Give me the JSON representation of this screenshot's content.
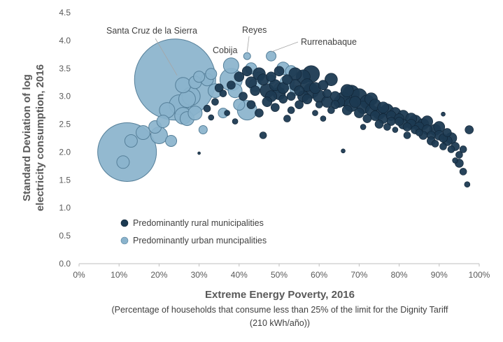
{
  "chart_data": {
    "type": "scatter",
    "xlabel": "Extreme Energy Poverty, 2016",
    "xlabel_sub_line1": "(Percentage of households that consume less than 25% of the limit for the Dignity Tariff",
    "xlabel_sub_line2": "(210 kWh/año))",
    "ylabel_line1": "Standard Deviation of log",
    "ylabel_line2": "electricity consumption, 2016",
    "xlim": [
      0,
      100
    ],
    "ylim": [
      0,
      4.5
    ],
    "x_ticks": [
      "0%",
      "10%",
      "20%",
      "30%",
      "40%",
      "50%",
      "60%",
      "70%",
      "80%",
      "90%",
      "100%"
    ],
    "y_ticks": [
      "0.0",
      "0.5",
      "1.0",
      "1.5",
      "2.0",
      "2.5",
      "3.0",
      "3.5",
      "4.0",
      "4.5"
    ],
    "grid": false,
    "legend_position": "bottom-left",
    "series": [
      {
        "name": "Predominantly rural municipalities",
        "color": "#1c3a52",
        "points": [
          [
            30,
            1.98
          ],
          [
            32,
            2.78
          ],
          [
            33,
            2.62
          ],
          [
            34,
            2.9
          ],
          [
            35,
            3.15
          ],
          [
            36,
            3.05
          ],
          [
            37,
            2.7
          ],
          [
            38,
            3.2
          ],
          [
            39,
            2.55
          ],
          [
            40,
            3.35
          ],
          [
            41,
            3.0
          ],
          [
            42,
            3.45
          ],
          [
            43,
            3.25
          ],
          [
            43,
            2.85
          ],
          [
            44,
            3.1
          ],
          [
            45,
            3.4
          ],
          [
            45,
            2.7
          ],
          [
            46,
            2.3
          ],
          [
            46,
            3.3
          ],
          [
            47,
            2.9
          ],
          [
            47,
            3.1
          ],
          [
            48,
            3.0
          ],
          [
            48,
            3.35
          ],
          [
            49,
            2.8
          ],
          [
            49,
            3.2
          ],
          [
            50,
            3.05
          ],
          [
            50,
            3.45
          ],
          [
            51,
            2.95
          ],
          [
            51,
            3.15
          ],
          [
            52,
            2.6
          ],
          [
            52,
            3.3
          ],
          [
            53,
            3.0
          ],
          [
            53,
            2.75
          ],
          [
            54,
            3.2
          ],
          [
            54,
            3.4
          ],
          [
            55,
            3.1
          ],
          [
            55,
            2.85
          ],
          [
            56,
            3.0
          ],
          [
            56,
            3.35
          ],
          [
            57,
            2.95
          ],
          [
            57,
            3.2
          ],
          [
            58,
            3.1
          ],
          [
            58,
            3.4
          ],
          [
            59,
            2.7
          ],
          [
            59,
            3.15
          ],
          [
            60,
            3.0
          ],
          [
            60,
            2.85
          ],
          [
            61,
            3.2
          ],
          [
            61,
            2.6
          ],
          [
            62,
            3.05
          ],
          [
            62,
            2.9
          ],
          [
            63,
            3.3
          ],
          [
            63,
            2.75
          ],
          [
            64,
            3.0
          ],
          [
            64,
            2.85
          ],
          [
            65,
            2.9
          ],
          [
            66,
            2.95
          ],
          [
            66,
            2.02
          ],
          [
            67,
            3.1
          ],
          [
            67,
            2.75
          ],
          [
            68,
            2.85
          ],
          [
            68,
            3.05
          ],
          [
            69,
            2.9
          ],
          [
            70,
            2.7
          ],
          [
            70,
            3.0
          ],
          [
            71,
            2.8
          ],
          [
            71,
            2.45
          ],
          [
            72,
            2.9
          ],
          [
            72,
            2.6
          ],
          [
            73,
            2.75
          ],
          [
            73,
            2.95
          ],
          [
            74,
            2.65
          ],
          [
            74,
            2.85
          ],
          [
            75,
            2.7
          ],
          [
            75,
            2.5
          ],
          [
            76,
            2.8
          ],
          [
            76,
            2.6
          ],
          [
            77,
            2.75
          ],
          [
            77,
            2.45
          ],
          [
            78,
            2.65
          ],
          [
            78,
            2.55
          ],
          [
            79,
            2.7
          ],
          [
            79,
            2.4
          ],
          [
            80,
            2.6
          ],
          [
            80,
            2.55
          ],
          [
            81,
            2.5
          ],
          [
            81,
            2.65
          ],
          [
            82,
            2.45
          ],
          [
            82,
            2.3
          ],
          [
            83,
            2.6
          ],
          [
            83,
            2.5
          ],
          [
            84,
            2.4
          ],
          [
            84,
            2.55
          ],
          [
            85,
            2.45
          ],
          [
            85,
            2.35
          ],
          [
            86,
            2.5
          ],
          [
            86,
            2.3
          ],
          [
            87,
            2.4
          ],
          [
            87,
            2.55
          ],
          [
            88,
            2.3
          ],
          [
            88,
            2.2
          ],
          [
            89,
            2.4
          ],
          [
            89,
            2.15
          ],
          [
            90,
            2.3
          ],
          [
            90,
            2.45
          ],
          [
            91,
            2.25
          ],
          [
            91,
            2.1
          ],
          [
            92,
            2.2
          ],
          [
            92,
            2.35
          ],
          [
            93,
            2.05
          ],
          [
            93,
            2.25
          ],
          [
            94,
            2.1
          ],
          [
            94,
            1.85
          ],
          [
            95,
            1.95
          ],
          [
            95,
            1.8
          ],
          [
            96,
            1.65
          ],
          [
            96,
            2.05
          ],
          [
            97,
            1.42
          ],
          [
            97.5,
            2.4
          ],
          [
            91,
            2.68
          ]
        ],
        "sizes": [
          2,
          5,
          4,
          5,
          6,
          5,
          4,
          6,
          4,
          7,
          6,
          7,
          8,
          6,
          7,
          9,
          6,
          5,
          8,
          7,
          10,
          8,
          7,
          6,
          8,
          9,
          7,
          6,
          8,
          5,
          7,
          6,
          5,
          8,
          9,
          7,
          6,
          8,
          10,
          7,
          9,
          11,
          12,
          4,
          8,
          9,
          5,
          7,
          4,
          6,
          8,
          9,
          5,
          7,
          6,
          8,
          10,
          3,
          9,
          7,
          10,
          12,
          8,
          7,
          11,
          9,
          4,
          10,
          6,
          8,
          9,
          7,
          8,
          9,
          6,
          8,
          7,
          9,
          5,
          7,
          6,
          8,
          4,
          7,
          6,
          7,
          8,
          6,
          5,
          8,
          7,
          6,
          9,
          7,
          5,
          8,
          6,
          7,
          8,
          6,
          6,
          8,
          5,
          7,
          8,
          6,
          5,
          7,
          6,
          5,
          8,
          6,
          4,
          5,
          6,
          5,
          5,
          4,
          6,
          3
        ]
      },
      {
        "name": "Predominantly urban muncipalities",
        "color": "#8ab3cc",
        "points": [
          [
            11,
            1.82
          ],
          [
            13,
            2.2
          ],
          [
            12,
            2.0
          ],
          [
            16,
            2.35
          ],
          [
            19,
            2.45
          ],
          [
            20,
            2.3
          ],
          [
            22,
            2.75
          ],
          [
            24,
            3.3
          ],
          [
            25,
            2.85
          ],
          [
            26,
            2.65
          ],
          [
            27,
            2.6
          ],
          [
            26,
            3.2
          ],
          [
            28,
            3.0
          ],
          [
            29,
            3.25
          ],
          [
            30,
            3.35
          ],
          [
            31,
            2.4
          ],
          [
            32,
            3.3
          ],
          [
            33,
            3.4
          ],
          [
            34,
            3.1
          ],
          [
            36,
            2.7
          ],
          [
            38,
            3.55
          ],
          [
            38,
            3.3
          ],
          [
            39,
            3.1
          ],
          [
            40,
            2.85
          ],
          [
            42,
            2.75
          ],
          [
            42,
            3.72
          ],
          [
            43,
            3.5
          ],
          [
            44,
            3.2
          ],
          [
            45,
            3.35
          ],
          [
            48,
            3.72
          ],
          [
            48,
            3.3
          ],
          [
            50,
            3.15
          ],
          [
            51,
            3.5
          ],
          [
            52,
            3.25
          ],
          [
            53,
            3.45
          ],
          [
            54,
            3.1
          ],
          [
            23,
            2.2
          ],
          [
            21,
            2.55
          ],
          [
            27,
            2.95
          ],
          [
            29,
            2.7
          ]
        ],
        "sizes": [
          9,
          9,
          42,
          10,
          9,
          12,
          11,
          58,
          14,
          12,
          10,
          11,
          13,
          9,
          8,
          6,
          9,
          8,
          10,
          7,
          11,
          16,
          10,
          8,
          14,
          5,
          8,
          9,
          7,
          7,
          6,
          7,
          9,
          10,
          8,
          7,
          8,
          9,
          12,
          10
        ]
      }
    ],
    "annotations": [
      {
        "text": "Santa Cruz de la Sierra",
        "x": 24.5,
        "y": 3.3
      },
      {
        "text": "Reyes",
        "x": 42,
        "y": 3.72
      },
      {
        "text": "Cobija",
        "x": 38,
        "y": 3.55
      },
      {
        "text": "Rurrenabaque",
        "x": 48,
        "y": 3.72
      }
    ]
  }
}
